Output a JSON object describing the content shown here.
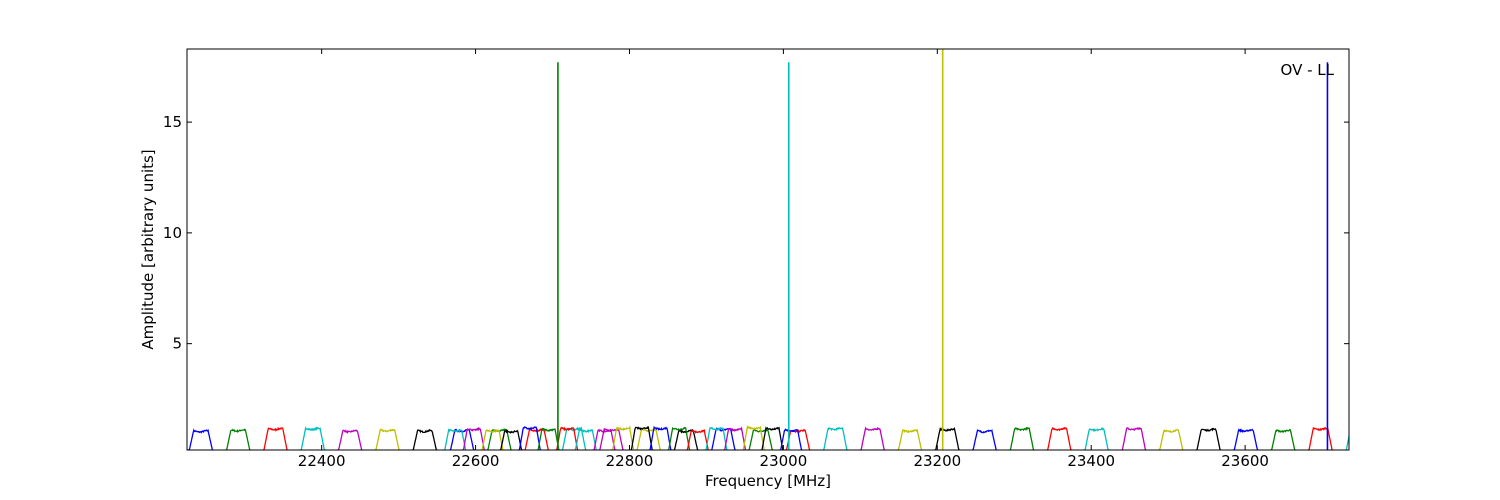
{
  "chart_data": {
    "type": "line",
    "title": "",
    "xlabel": "Frequency [MHz]",
    "ylabel": "Amplitude [arbitrary units]",
    "annotation": "OV - LL",
    "xlim": [
      22225,
      23735
    ],
    "ylim": [
      0.2,
      18.3
    ],
    "xticks": [
      22400,
      22600,
      22800,
      23000,
      23200,
      23400,
      23600
    ],
    "yticks": [
      5,
      10,
      15
    ],
    "grid": false,
    "legend": "none",
    "palette": [
      "#0000ff",
      "#008000",
      "#ff0000",
      "#00bfbf",
      "#bf00bf",
      "#bfbf00",
      "#000000"
    ],
    "band": {
      "first_start": 22228,
      "spacing": 48.5,
      "width": 30,
      "plateau": 1.1,
      "floor": 0.2
    },
    "overlap_region": [
      22560,
      23000
    ],
    "spikes": [
      {
        "x": 22707,
        "y": 17.7,
        "color": "#008000"
      },
      {
        "x": 23007,
        "y": 17.7,
        "color": "#00bfbf"
      },
      {
        "x": 23207,
        "y": 18.3,
        "color": "#bfbf00"
      },
      {
        "x": 23707,
        "y": 17.7,
        "color": "#0000ff"
      }
    ]
  }
}
